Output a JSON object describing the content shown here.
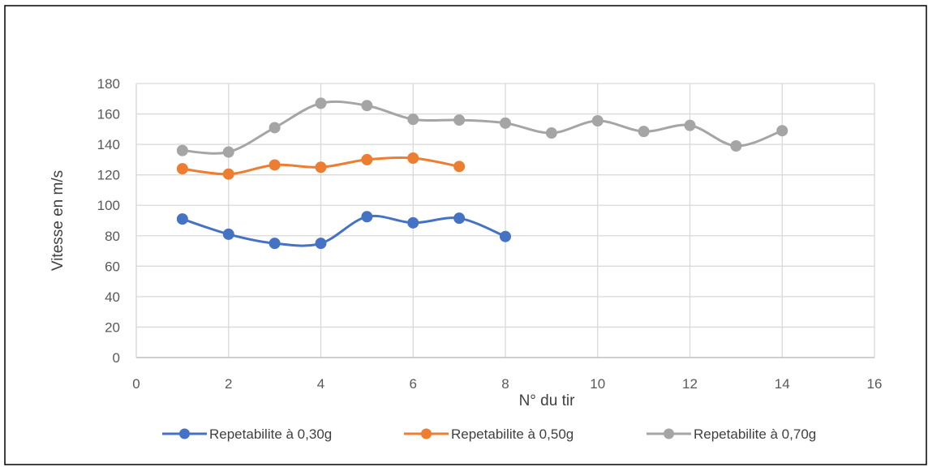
{
  "chart_data": {
    "type": "line",
    "title": "",
    "xlabel": "N° du tir",
    "ylabel": "Vitesse en m/s",
    "xlim": [
      0,
      16
    ],
    "ylim": [
      0,
      180
    ],
    "x_ticks": [
      0,
      2,
      4,
      6,
      8,
      10,
      12,
      14,
      16
    ],
    "y_ticks": [
      0,
      20,
      40,
      60,
      80,
      100,
      120,
      140,
      160,
      180
    ],
    "grid": true,
    "smooth": true,
    "legend_position": "bottom",
    "series": [
      {
        "name": "Repetabilite à 0,30g",
        "color": "#4472C4",
        "x": [
          1,
          2,
          3,
          4,
          5,
          6,
          7,
          8
        ],
        "values": [
          91,
          81,
          75,
          75,
          92.5,
          88.5,
          91.5,
          79.5
        ]
      },
      {
        "name": "Repetabilite à 0,50g",
        "color": "#ED7D31",
        "x": [
          1,
          2,
          3,
          4,
          5,
          6,
          7
        ],
        "values": [
          124,
          120.5,
          126.5,
          125,
          130,
          131,
          125.5
        ]
      },
      {
        "name": "Repetabilite à 0,70g",
        "color": "#A5A5A5",
        "x": [
          1,
          2,
          3,
          4,
          5,
          6,
          7,
          8,
          9,
          10,
          11,
          12,
          13,
          14
        ],
        "values": [
          136,
          135,
          151,
          167,
          165.5,
          156.5,
          156,
          154,
          147.5,
          155.5,
          148.5,
          152.5,
          139,
          149
        ]
      }
    ]
  }
}
